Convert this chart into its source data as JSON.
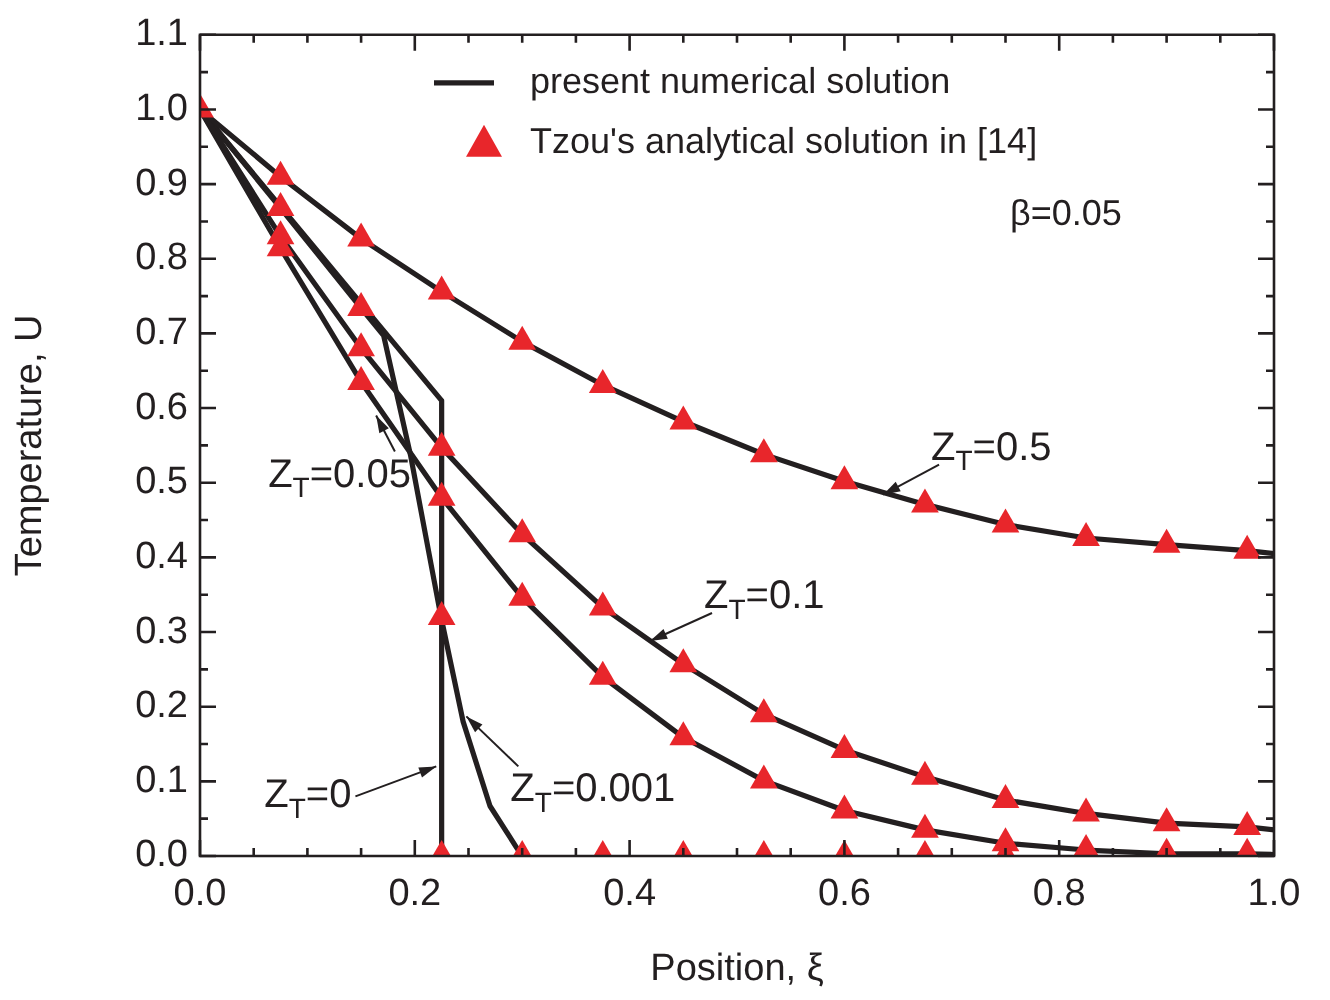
{
  "chart_data": {
    "type": "line",
    "xlabel": "Position, ξ",
    "ylabel": "Temperature, U",
    "xlim": [
      0,
      1
    ],
    "ylim": [
      0,
      1.1
    ],
    "xticks": [
      {
        "value": 0,
        "label": "0.0"
      },
      {
        "value": 0.05,
        "label": null
      },
      {
        "value": 0.1,
        "label": null
      },
      {
        "value": 0.15,
        "label": null
      },
      0.2,
      {
        "value": 0.25,
        "label": null
      },
      {
        "value": 0.3,
        "label": null
      },
      {
        "value": 0.35,
        "label": null
      },
      0.4,
      {
        "value": 0.45,
        "label": null
      },
      {
        "value": 0.5,
        "label": null
      },
      {
        "value": 0.55,
        "label": null
      },
      0.6,
      {
        "value": 0.65,
        "label": null
      },
      {
        "value": 0.7,
        "label": null
      },
      {
        "value": 0.75,
        "label": null
      },
      0.8,
      {
        "value": 0.85,
        "label": null
      },
      {
        "value": 0.9,
        "label": null
      },
      {
        "value": 0.95,
        "label": null
      },
      {
        "value": 1,
        "label": "1.0"
      }
    ],
    "yticks": [
      {
        "value": 0,
        "label": "0.0"
      },
      {
        "value": 0.05,
        "label": null
      },
      0.1,
      {
        "value": 0.15,
        "label": null
      },
      0.2,
      {
        "value": 0.25,
        "label": null
      },
      0.3,
      {
        "value": 0.35,
        "label": null
      },
      0.4,
      {
        "value": 0.45,
        "label": null
      },
      0.5,
      {
        "value": 0.55,
        "label": null
      },
      0.6,
      {
        "value": 0.65,
        "label": null
      },
      0.7,
      {
        "value": 0.75,
        "label": null
      },
      0.8,
      {
        "value": 0.85,
        "label": null
      },
      0.9,
      {
        "value": 0.95,
        "label": null
      },
      {
        "value": 1,
        "label": "1.0"
      },
      {
        "value": 1.05,
        "label": null
      },
      1.1
    ],
    "grid": false,
    "legend": "top right",
    "series": [
      {
        "name": "present numerical solution",
        "color": "#231f20",
        "marker": "none",
        "x": [
          0,
          0.075,
          0.15,
          0.225,
          0.3,
          0.375,
          0.45,
          0.525,
          0.6,
          0.675,
          0.75,
          0.825,
          0.9,
          0.975,
          1
        ],
        "values": [
          1,
          0.91,
          0.827,
          0.756,
          0.689,
          0.631,
          0.582,
          0.538,
          0.502,
          0.471,
          0.444,
          0.426,
          0.417,
          0.409,
          0.405
        ]
      },
      {
        "color": "#231f20",
        "marker": "none",
        "x": [
          0,
          0.075,
          0.15,
          0.225,
          0.3,
          0.375,
          0.45,
          0.525,
          0.6,
          0.675,
          0.75,
          0.825,
          0.9,
          0.975,
          1
        ],
        "values": [
          1,
          0.83,
          0.68,
          0.547,
          0.431,
          0.333,
          0.257,
          0.19,
          0.142,
          0.106,
          0.075,
          0.057,
          0.044,
          0.039,
          0.035
        ]
      },
      {
        "color": "#231f20",
        "marker": "none",
        "x": [
          0,
          0.075,
          0.15,
          0.225,
          0.3,
          0.375,
          0.45,
          0.525,
          0.6,
          0.675,
          0.75,
          0.825,
          0.9,
          0.975,
          1
        ],
        "values": [
          1,
          0.814,
          0.635,
          0.48,
          0.346,
          0.24,
          0.159,
          0.101,
          0.061,
          0.035,
          0.017,
          0.008,
          0.003,
          0.003,
          0.002
        ]
      },
      {
        "color": "#231f20",
        "marker": "none",
        "x": [
          0,
          0.075,
          0.15,
          0.171,
          0.196,
          0.224,
          0.245,
          0.27,
          0.294,
          0.3
        ],
        "values": [
          1,
          0.868,
          0.734,
          0.697,
          0.537,
          0.323,
          0.18,
          0.067,
          0.013,
          0
        ]
      },
      {
        "color": "#231f20",
        "marker": "none",
        "x": [
          0,
          0.225,
          0.225
        ],
        "values": [
          1,
          0.61,
          0
        ]
      },
      {
        "name": "Tzou's analytical solution in [14]",
        "type": "scatter",
        "color": "#e8262b",
        "marker": "triangle",
        "x": [
          0,
          0.075,
          0.075,
          0.075,
          0.075,
          0.15,
          0.15,
          0.15,
          0.15,
          0.225,
          0.225,
          0.225,
          0.225,
          0.225,
          0.3,
          0.3,
          0.3,
          0.3,
          0.375,
          0.375,
          0.375,
          0.375,
          0.45,
          0.45,
          0.45,
          0.45,
          0.525,
          0.525,
          0.525,
          0.525,
          0.6,
          0.6,
          0.6,
          0.6,
          0.675,
          0.675,
          0.675,
          0.675,
          0.75,
          0.75,
          0.75,
          0.75,
          0.825,
          0.825,
          0.825,
          0.9,
          0.9,
          0.9,
          0.975,
          0.975,
          0.975
        ],
        "values": [
          1,
          0.91,
          0.868,
          0.83,
          0.814,
          0.827,
          0.734,
          0.68,
          0.635,
          0.756,
          0.547,
          0.48,
          0.32,
          0,
          0.689,
          0.431,
          0.346,
          0,
          0.631,
          0.333,
          0.24,
          0,
          0.582,
          0.257,
          0.159,
          0,
          0.538,
          0.19,
          0.101,
          0,
          0.502,
          0.142,
          0.061,
          0,
          0.471,
          0.106,
          0.035,
          0,
          0.444,
          0.075,
          0.017,
          0,
          0.426,
          0.057,
          0.008,
          0.417,
          0.044,
          0.003,
          0.409,
          0.039,
          0.003
        ]
      }
    ],
    "annotations": [
      "β=0.05",
      {
        "text": "Z$_{T}$=0.5",
        "x": 0.636,
        "y": 0.484
      },
      {
        "text": "Z$_{T}$=0.1",
        "x": 0.419,
        "y": 0.288
      },
      {
        "text": "Z$_{T}$=0.05",
        "x": 0.164,
        "y": 0.59
      },
      {
        "text": "Z$_{T}$=0",
        "x": 0.22,
        "y": 0.12
      },
      {
        "text": "Z$_{T}$=0.001",
        "x": 0.248,
        "y": 0.187
      }
    ]
  }
}
